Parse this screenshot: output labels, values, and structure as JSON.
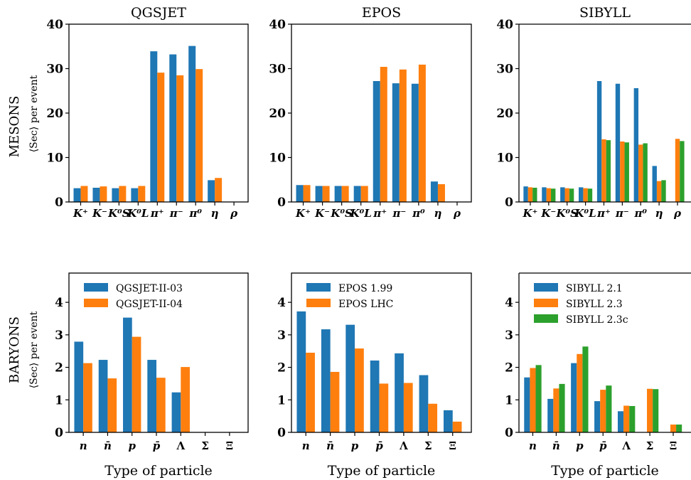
{
  "figure": {
    "row_labels": [
      {
        "main": "MESONS",
        "sub": "⟨Sec⟩ per event"
      },
      {
        "main": "BARYONS",
        "sub": "⟨Sec⟩ per event"
      }
    ]
  },
  "chart_data": [
    {
      "type": "bar",
      "title": "QGSJET",
      "xlabel": "",
      "ylabel": "MESONS ⟨Sec⟩ per event",
      "categories": [
        "K⁺",
        "K⁻",
        "K⁰S",
        "K⁰L",
        "π⁺",
        "π⁻",
        "π⁰",
        "η",
        "ρ"
      ],
      "ylim": [
        0,
        40
      ],
      "yticks": [
        0,
        10,
        20,
        30,
        40
      ],
      "series": [
        {
          "name": "QGSJET-II-03",
          "color": "#1f77b4",
          "values": [
            3.1,
            3.2,
            3.1,
            3.1,
            33.9,
            33.2,
            35.1,
            4.9,
            0
          ]
        },
        {
          "name": "QGSJET-II-04",
          "color": "#ff7f0e",
          "values": [
            3.6,
            3.5,
            3.6,
            3.6,
            29.1,
            28.5,
            29.9,
            5.4,
            0
          ]
        }
      ],
      "legend": null
    },
    {
      "type": "bar",
      "title": "EPOS",
      "xlabel": "",
      "ylabel": "",
      "categories": [
        "K⁺",
        "K⁻",
        "K⁰S",
        "K⁰L",
        "π⁺",
        "π⁻",
        "π⁰",
        "η",
        "ρ"
      ],
      "ylim": [
        0,
        40
      ],
      "yticks": [
        0,
        10,
        20,
        30,
        40
      ],
      "series": [
        {
          "name": "EPOS 1.99",
          "color": "#1f77b4",
          "values": [
            3.8,
            3.6,
            3.6,
            3.6,
            27.2,
            26.7,
            26.6,
            4.6,
            0
          ]
        },
        {
          "name": "EPOS LHC",
          "color": "#ff7f0e",
          "values": [
            3.8,
            3.6,
            3.6,
            3.6,
            30.4,
            29.8,
            30.9,
            4.0,
            0
          ]
        }
      ],
      "legend": null
    },
    {
      "type": "bar",
      "title": "SIBYLL",
      "xlabel": "",
      "ylabel": "",
      "categories": [
        "K⁺",
        "K⁻",
        "K⁰S",
        "K⁰L",
        "π⁺",
        "π⁻",
        "π⁰",
        "η",
        "ρ"
      ],
      "ylim": [
        0,
        40
      ],
      "yticks": [
        0,
        10,
        20,
        30,
        40
      ],
      "series": [
        {
          "name": "SIBYLL 2.1",
          "color": "#1f77b4",
          "values": [
            3.5,
            3.3,
            3.3,
            3.3,
            27.2,
            26.6,
            25.6,
            8.1,
            0
          ]
        },
        {
          "name": "SIBYLL 2.3",
          "color": "#ff7f0e",
          "values": [
            3.3,
            3.1,
            3.1,
            3.1,
            14.1,
            13.6,
            12.9,
            4.7,
            14.2
          ]
        },
        {
          "name": "SIBYLL 2.3c",
          "color": "#2ca02c",
          "values": [
            3.2,
            3.0,
            3.0,
            3.0,
            13.9,
            13.4,
            13.2,
            4.9,
            13.7
          ]
        }
      ],
      "legend": null
    },
    {
      "type": "bar",
      "title": "",
      "xlabel": "Type of particle",
      "ylabel": "BARYONS ⟨Sec⟩ per event",
      "categories": [
        "n",
        "n̄",
        "p",
        "p̄",
        "Λ",
        "Σ",
        "Ξ"
      ],
      "ylim": [
        0,
        4.9
      ],
      "yticks": [
        0,
        1,
        2,
        3,
        4
      ],
      "series": [
        {
          "name": "QGSJET-II-03",
          "color": "#1f77b4",
          "values": [
            2.79,
            2.23,
            3.53,
            2.23,
            1.23,
            0,
            0
          ]
        },
        {
          "name": "QGSJET-II-04",
          "color": "#ff7f0e",
          "values": [
            2.13,
            1.66,
            2.94,
            1.68,
            2.01,
            0,
            0
          ]
        }
      ],
      "legend": "top-left"
    },
    {
      "type": "bar",
      "title": "",
      "xlabel": "Type of particle",
      "ylabel": "",
      "categories": [
        "n",
        "n̄",
        "p",
        "p̄",
        "Λ",
        "Σ",
        "Ξ"
      ],
      "ylim": [
        0,
        4.9
      ],
      "yticks": [
        0,
        1,
        2,
        3,
        4
      ],
      "series": [
        {
          "name": "EPOS 1.99",
          "color": "#1f77b4",
          "values": [
            3.72,
            3.17,
            3.31,
            2.21,
            2.43,
            1.76,
            0.68
          ]
        },
        {
          "name": "EPOS LHC",
          "color": "#ff7f0e",
          "values": [
            2.45,
            1.86,
            2.58,
            1.5,
            1.52,
            0.88,
            0.33
          ]
        }
      ],
      "legend": "top-left"
    },
    {
      "type": "bar",
      "title": "",
      "xlabel": "Type of particle",
      "ylabel": "",
      "categories": [
        "n",
        "n̄",
        "p",
        "p̄",
        "Λ",
        "Σ",
        "Ξ"
      ],
      "ylim": [
        0,
        4.9
      ],
      "yticks": [
        0,
        1,
        2,
        3,
        4
      ],
      "series": [
        {
          "name": "SIBYLL 2.1",
          "color": "#1f77b4",
          "values": [
            1.69,
            1.03,
            2.13,
            0.96,
            0.65,
            0,
            0
          ]
        },
        {
          "name": "SIBYLL 2.3",
          "color": "#ff7f0e",
          "values": [
            1.98,
            1.35,
            2.41,
            1.31,
            0.82,
            1.34,
            0.24
          ]
        },
        {
          "name": "SIBYLL 2.3c",
          "color": "#2ca02c",
          "values": [
            2.07,
            1.49,
            2.64,
            1.44,
            0.81,
            1.33,
            0.24
          ]
        }
      ],
      "legend": "top-left"
    }
  ]
}
